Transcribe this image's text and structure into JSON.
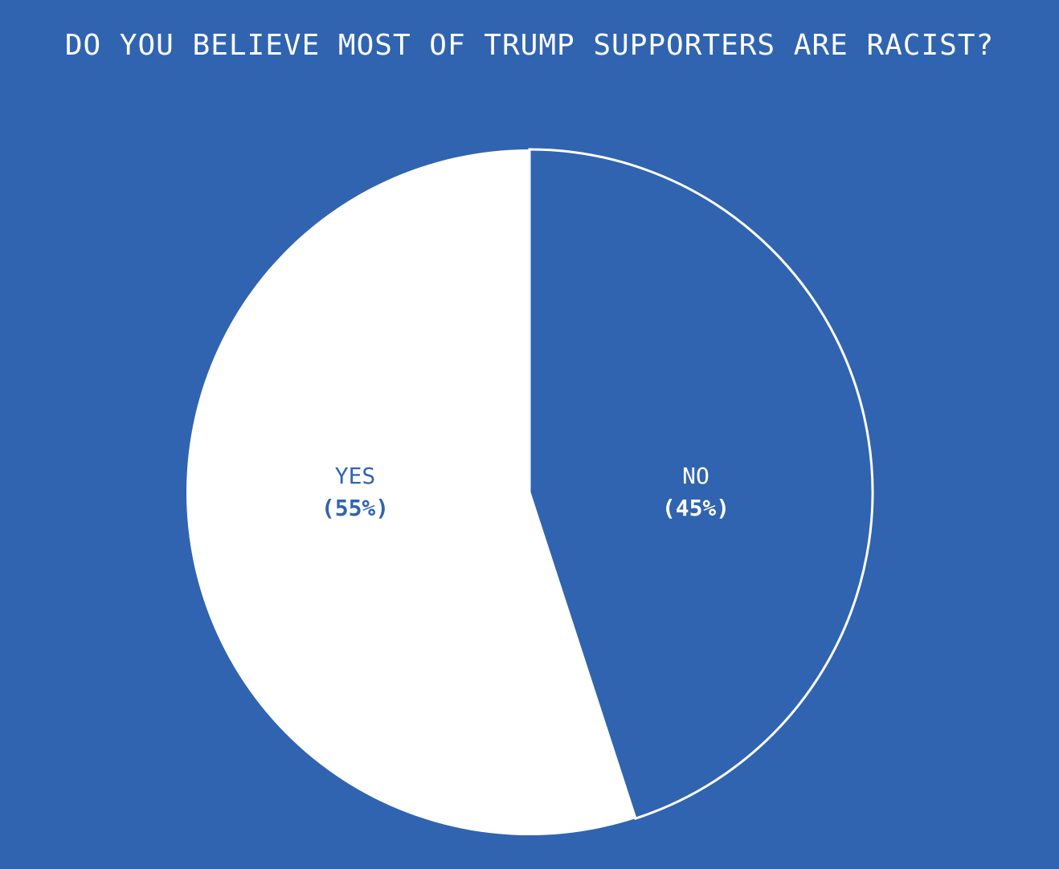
{
  "colors": {
    "background": "#3064b0",
    "yes_slice": "#ffffff",
    "no_slice": "#3064b0",
    "stroke": "#ffffff"
  },
  "chart_data": {
    "type": "pie",
    "title": "DO YOU BELIEVE MOST OF TRUMP SUPPORTERS ARE RACIST?",
    "categories": [
      "YES",
      "NO"
    ],
    "values": [
      55,
      45
    ],
    "labels": [
      {
        "name": "YES",
        "pct": "(55%)"
      },
      {
        "name": "NO",
        "pct": "(45%)"
      }
    ],
    "legend": "none",
    "start_angle": "12 o'clock",
    "direction": "NO clockwise from top, YES remainder"
  }
}
